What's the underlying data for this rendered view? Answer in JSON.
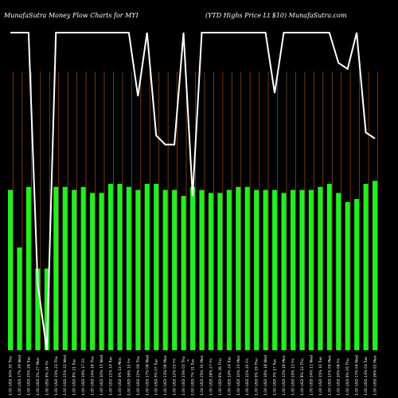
{
  "chart_data": {
    "type": "bar",
    "title": {
      "left": "MunafaSutra  Money Flow  Charts for MYI",
      "right": "(YTD Highs Price   Lt $10) MunafaSutra.com"
    },
    "center_mark": "s",
    "colors": {
      "background": "#000000",
      "bar": "#22ee22",
      "grid": "#8b4513",
      "line": "#ffffff"
    },
    "categories": [
      "Thu 30 Jan",
      "Wed 29 Jan",
      "Tue 28 Jan",
      "Mon 27 Jan",
      "Fri 24 Jan",
      "Thu 23 Jan",
      "Wed 22 Jan",
      "Tue 21 Jan",
      "Fri 17 Jan",
      "Thu 16 Jan",
      "Wed 15 Jan",
      "Tue 14 Jan",
      "Mon 13 Jan",
      "Fri 10 Jan",
      "Thu 09 Jan",
      "Wed 08 Jan",
      "Tue 07 Jan",
      "Mon 06 Jan",
      "Fri 03 Jan",
      "Thu 02 Jan",
      "Tue 31 Dec",
      "Mon 30 Dec",
      "Fri 27 Dec",
      "Thu 26 Dec",
      "Tue 24 Dec",
      "Mon 23 Dec",
      "Fri 20 Dec",
      "Thu 19 Dec",
      "Wed 18 Dec",
      "Tue 17 Dec",
      "Mon 16 Dec",
      "Fri 13 Dec",
      "Thu 12 Dec",
      "Wed 11 Dec",
      "Tue 10 Dec",
      "Mon 09 Dec",
      "Fri 06 Dec",
      "Thu 05 Dec",
      "Wed 04 Dec",
      "Tue 03 Dec",
      "Mon 02 Dec"
    ],
    "tick_labels": [
      "1.00 USD 30% 30 Thu",
      "1.00 USD 17% 29 Wed",
      "1.00 USD 25% 28 Tue",
      "1.00 USD 2% 27 Mon",
      "1.00 USD 9% 24 Fri",
      "1.00 USD 15% 23 Thu",
      "1.00 USD 21% 22 Wed",
      "1.00 USD 8% 21 Tue",
      "1.00 USD 19% 17 Fri",
      "1.00 USD 14% 16 Thu",
      "1.00 USD 20% 15 Wed",
      "1.00 USD 11% 14 Tue",
      "1.00 USD 4% 13 Mon",
      "1.00 USD 16% 10 Fri",
      "1.00 USD 22% 09 Thu",
      "1.00 USD 17% 08 Wed",
      "1.00 USD 5% 07 Tue",
      "1.00 USD 13% 06 Mon",
      "1.00 USD 12% 03 Fri",
      "1.00 USD 23% 02 Thu",
      "1.00 USD 7% 31 Tue",
      "1.00 USD 25% 30 Mon",
      "1.00 USD 18% 27 Fri",
      "1.00 USD 6% 26 Thu",
      "1.00 USD 14% 24 Tue",
      "1.00 USD 10% 23 Mon",
      "1.00 USD 21% 20 Fri",
      "1.00 USD 9% 19 Thu",
      "1.00 USD 16% 18 Wed",
      "1.00 USD 3% 17 Tue",
      "1.00 USD 12% 16 Mon",
      "1.00 USD 19% 13 Fri",
      "1.00 USD 8% 12 Thu",
      "1.00 USD 24% 11 Wed",
      "1.00 USD 15% 10 Tue",
      "1.00 USD 11% 09 Mon",
      "1.00 USD 20% 06 Fri",
      "1.00 USD 6% 05 Thu",
      "1.00 USD 17% 04 Wed",
      "1.00 USD 13% 03 Tue",
      "1.00 USD 26% 02 Mon"
    ],
    "bars_normalized": [
      0.53,
      0.34,
      0.54,
      0.27,
      0.27,
      0.54,
      0.54,
      0.53,
      0.54,
      0.52,
      0.52,
      0.55,
      0.55,
      0.54,
      0.53,
      0.55,
      0.55,
      0.53,
      0.53,
      0.51,
      0.54,
      0.53,
      0.52,
      0.52,
      0.53,
      0.54,
      0.54,
      0.53,
      0.53,
      0.53,
      0.52,
      0.53,
      0.53,
      0.53,
      0.54,
      0.55,
      0.52,
      0.49,
      0.5,
      0.55,
      0.56
    ],
    "line_normalized": [
      1.05,
      1.05,
      1.05,
      0.22,
      0.0,
      1.05,
      1.05,
      1.05,
      1.05,
      1.05,
      1.05,
      1.05,
      1.05,
      1.05,
      0.84,
      1.05,
      0.71,
      0.68,
      0.68,
      1.05,
      0.51,
      1.05,
      1.05,
      1.05,
      1.05,
      1.05,
      1.05,
      1.05,
      1.05,
      0.85,
      1.05,
      1.05,
      1.05,
      1.05,
      1.05,
      1.05,
      0.95,
      0.93,
      1.05,
      0.72,
      0.7
    ]
  }
}
